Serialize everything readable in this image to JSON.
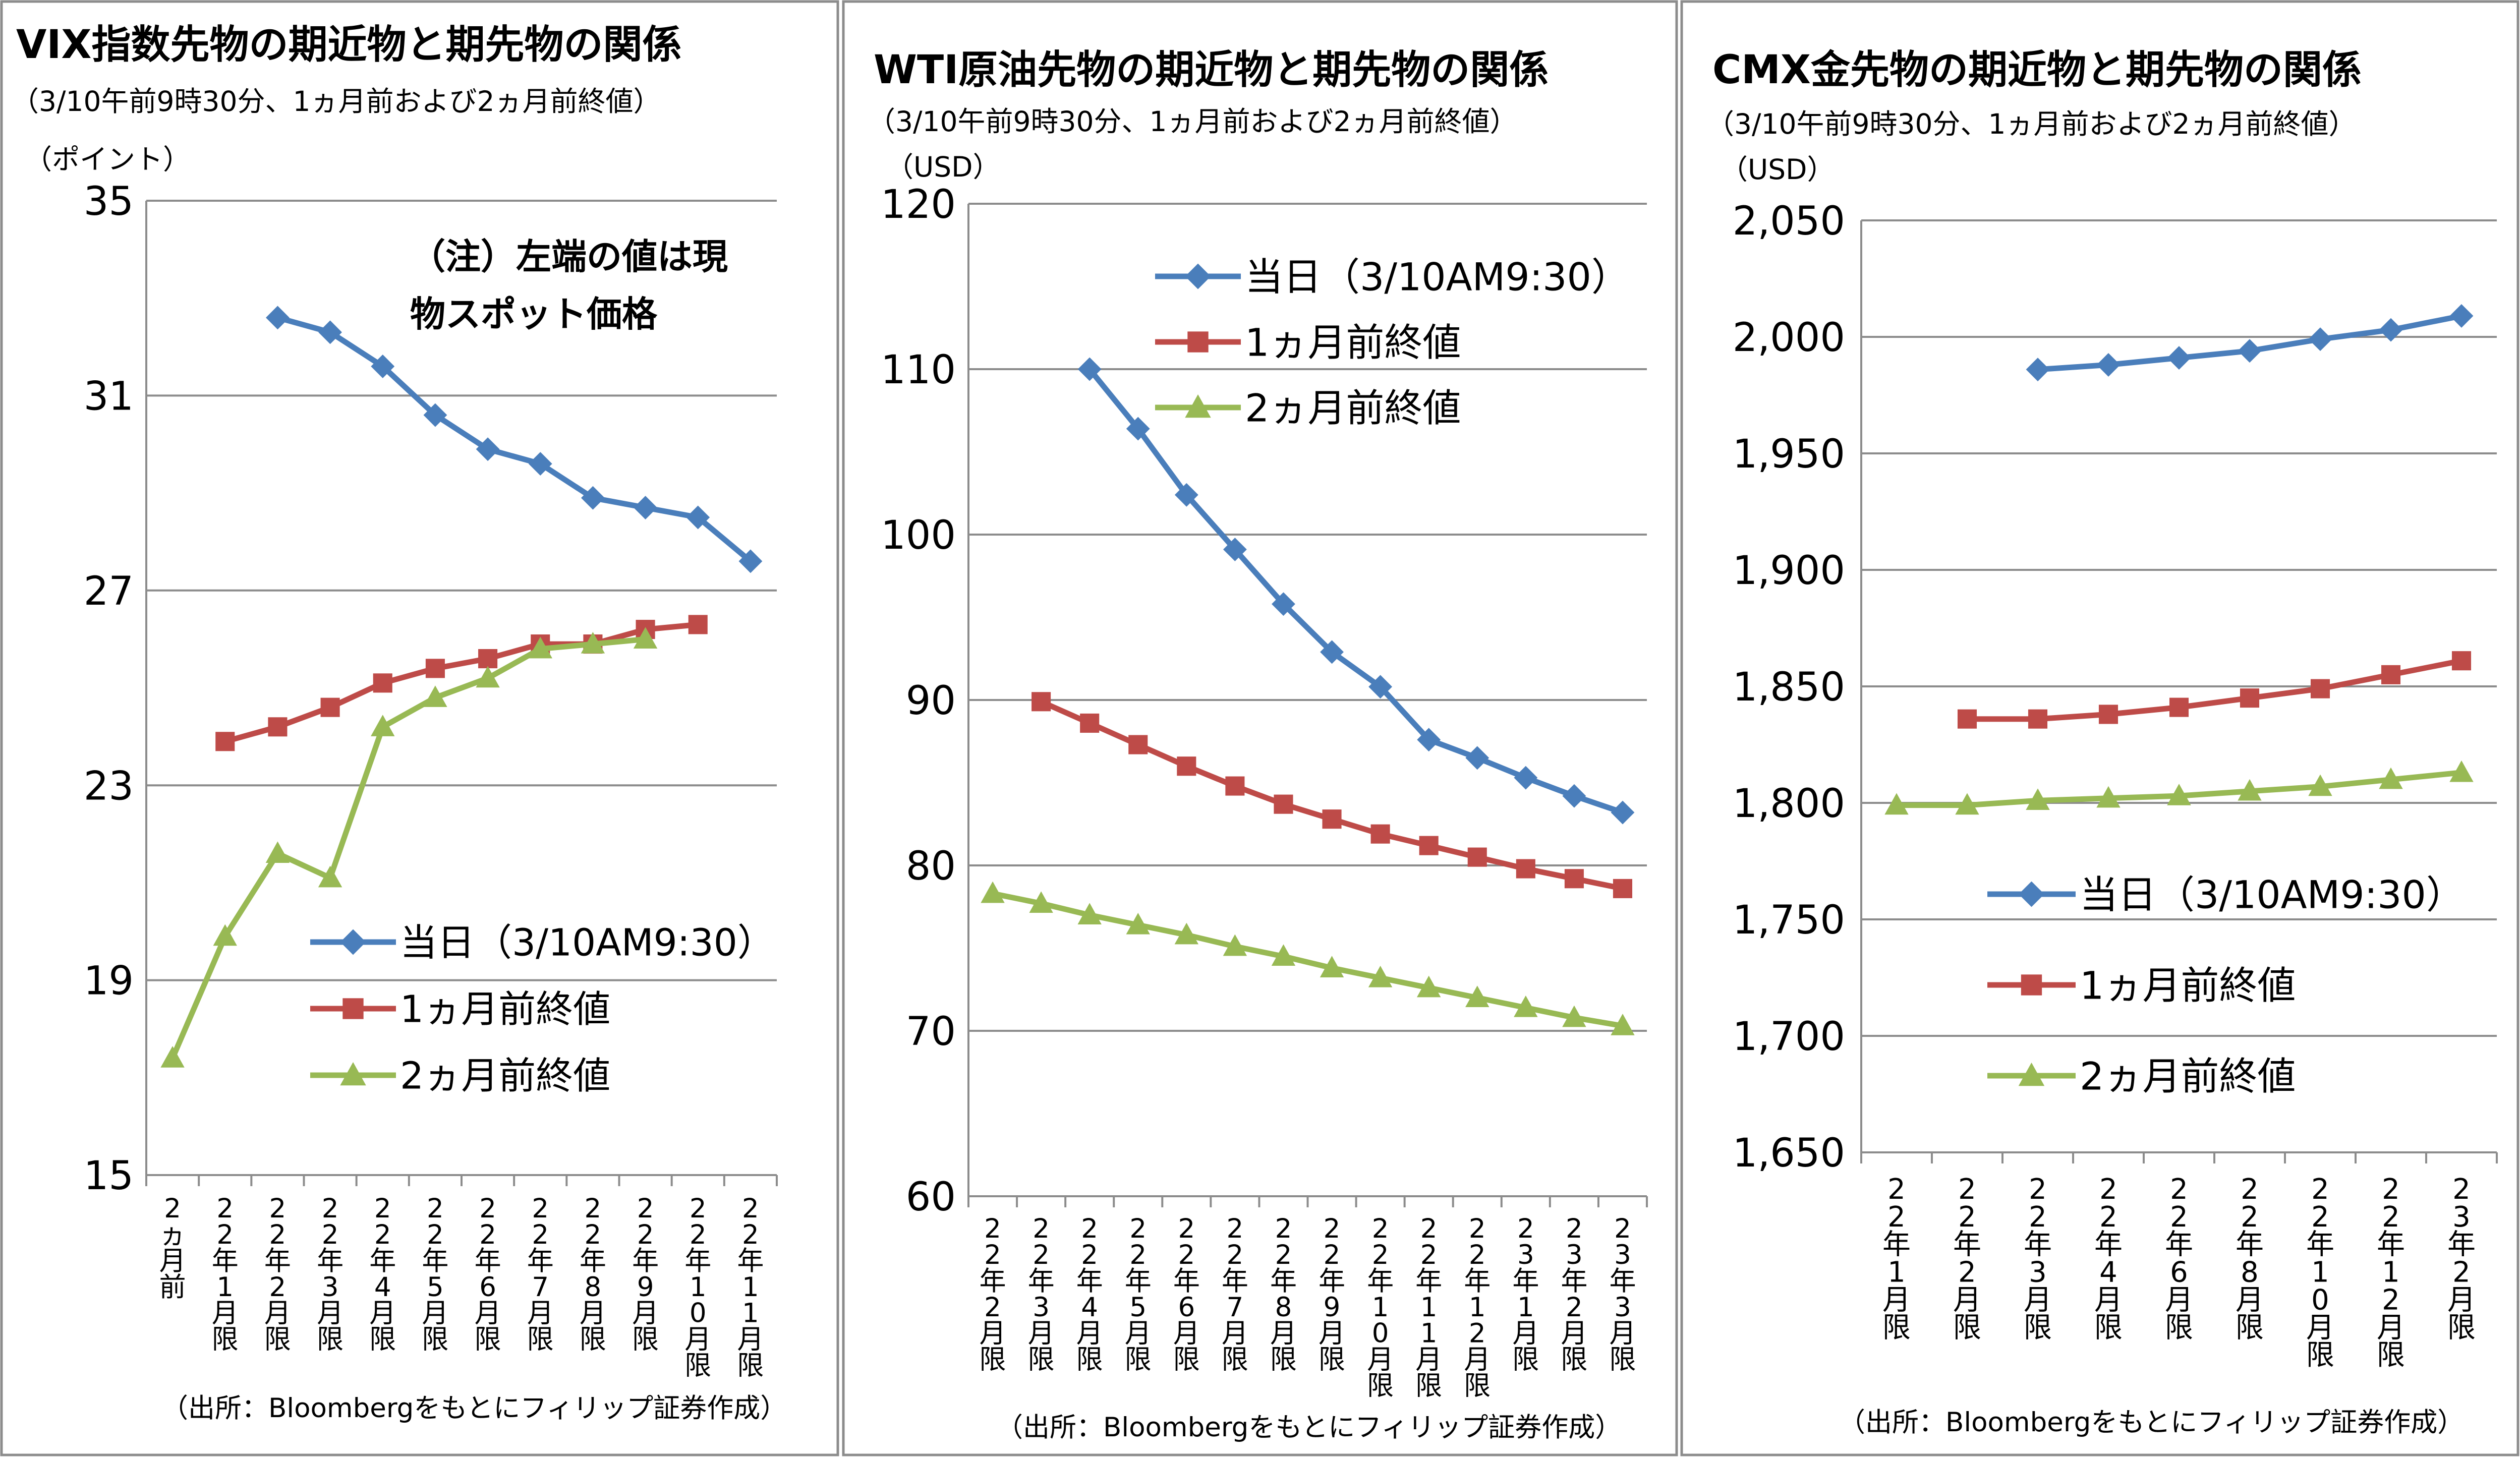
{
  "chart_data": [
    {
      "type": "line",
      "title": "VIX指数先物の期近物と期先物の関係",
      "subtitle": "（3/10午前9時30分、1ヵ月前および2ヵ月前終値）",
      "ylabel": "（ポイント）",
      "annotation": [
        "（注）左端の値は現",
        "物スポット価格"
      ],
      "source": "（出所：Bloombergをもとにフィリップ証券作成）",
      "ylim": [
        15,
        35
      ],
      "yticks": [
        15,
        19,
        23,
        27,
        31,
        35
      ],
      "ytick_labels": [
        "15",
        "19",
        "23",
        "27",
        "31",
        "35"
      ],
      "grid": true,
      "legend": "lower-right",
      "categories": [
        "2ヵ月前",
        "22年1月限",
        "22年2月限",
        "22年3月限",
        "22年4月限",
        "22年5月限",
        "22年6月限",
        "22年7月限",
        "22年8月限",
        "22年9月限",
        "22年10月限",
        "22年11月限"
      ],
      "series": [
        {
          "name": "当日（3/10AM9:30）",
          "color": "#4a7ebb",
          "marker": "diamond",
          "values": [
            null,
            null,
            32.6,
            32.3,
            31.6,
            30.6,
            29.9,
            29.6,
            28.9,
            28.7,
            28.5,
            27.6
          ]
        },
        {
          "name": "1ヵ月前終値",
          "color": "#be4b48",
          "marker": "square",
          "values": [
            null,
            23.9,
            24.2,
            24.6,
            25.1,
            25.4,
            25.6,
            25.9,
            25.9,
            26.2,
            26.3,
            null
          ]
        },
        {
          "name": "2ヵ月前終値",
          "color": "#98b954",
          "marker": "triangle",
          "values": [
            17.4,
            19.9,
            21.6,
            21.1,
            24.2,
            24.8,
            25.2,
            25.8,
            25.9,
            26.0,
            null,
            null
          ]
        }
      ]
    },
    {
      "type": "line",
      "title": "WTI原油先物の期近物と期先物の関係",
      "subtitle": "（3/10午前9時30分、1ヵ月前および2ヵ月前終値）",
      "ylabel": "（USD）",
      "source": "（出所：Bloombergをもとにフィリップ証券作成）",
      "ylim": [
        60,
        120
      ],
      "yticks": [
        60,
        70,
        80,
        90,
        100,
        110,
        120
      ],
      "ytick_labels": [
        "60",
        "70",
        "80",
        "90",
        "100",
        "110",
        "120"
      ],
      "grid": true,
      "legend": "top-right",
      "categories": [
        "22年2月限",
        "22年3月限",
        "22年4月限",
        "22年5月限",
        "22年6月限",
        "22年7月限",
        "22年8月限",
        "22年9月限",
        "22年10月限",
        "22年11月限",
        "22年12月限",
        "23年1月限",
        "23年2月限",
        "23年3月限"
      ],
      "series": [
        {
          "name": "当日（3/10AM9:30）",
          "color": "#4a7ebb",
          "marker": "diamond",
          "values": [
            null,
            null,
            110.0,
            106.4,
            102.4,
            99.1,
            95.8,
            92.9,
            90.8,
            87.6,
            86.5,
            85.3,
            84.2,
            83.2
          ]
        },
        {
          "name": "1ヵ月前終値",
          "color": "#be4b48",
          "marker": "square",
          "values": [
            null,
            89.9,
            88.6,
            87.3,
            86.0,
            84.8,
            83.7,
            82.8,
            81.9,
            81.2,
            80.5,
            79.8,
            79.2,
            78.6
          ]
        },
        {
          "name": "2ヵ月前終値",
          "color": "#98b954",
          "marker": "triangle",
          "values": [
            78.3,
            77.7,
            77.0,
            76.4,
            75.8,
            75.1,
            74.5,
            73.8,
            73.2,
            72.6,
            72.0,
            71.4,
            70.8,
            70.3
          ]
        }
      ]
    },
    {
      "type": "line",
      "title": "CMX金先物の期近物と期先物の関係",
      "subtitle": "（3/10午前9時30分、1ヵ月前および2ヵ月前終値）",
      "ylabel": "（USD）",
      "source": "（出所：Bloombergをもとにフィリップ証券作成）",
      "ylim": [
        1650,
        2050
      ],
      "yticks": [
        1650,
        1700,
        1750,
        1800,
        1850,
        1900,
        1950,
        2000,
        2050
      ],
      "ytick_labels": [
        "1,650",
        "1,700",
        "1,750",
        "1,800",
        "1,850",
        "1,900",
        "1,950",
        "2,000",
        "2,050"
      ],
      "grid": true,
      "legend": "lower-right",
      "categories": [
        "22年1月限",
        "22年2月限",
        "22年3月限",
        "22年4月限",
        "22年6月限",
        "22年8月限",
        "22年10月限",
        "22年12月限",
        "23年2月限"
      ],
      "series": [
        {
          "name": "当日（3/10AM9:30）",
          "color": "#4a7ebb",
          "marker": "diamond",
          "values": [
            null,
            null,
            1986,
            1988,
            1991,
            1994,
            1999,
            2003,
            2009
          ]
        },
        {
          "name": "1ヵ月前終値",
          "color": "#be4b48",
          "marker": "square",
          "values": [
            null,
            1836,
            1836,
            1838,
            1841,
            1845,
            1849,
            1855,
            1861
          ]
        },
        {
          "name": "2ヵ月前終値",
          "color": "#98b954",
          "marker": "triangle",
          "values": [
            1799,
            1799,
            1801,
            1802,
            1803,
            1805,
            1807,
            1810,
            1813
          ]
        }
      ]
    }
  ]
}
